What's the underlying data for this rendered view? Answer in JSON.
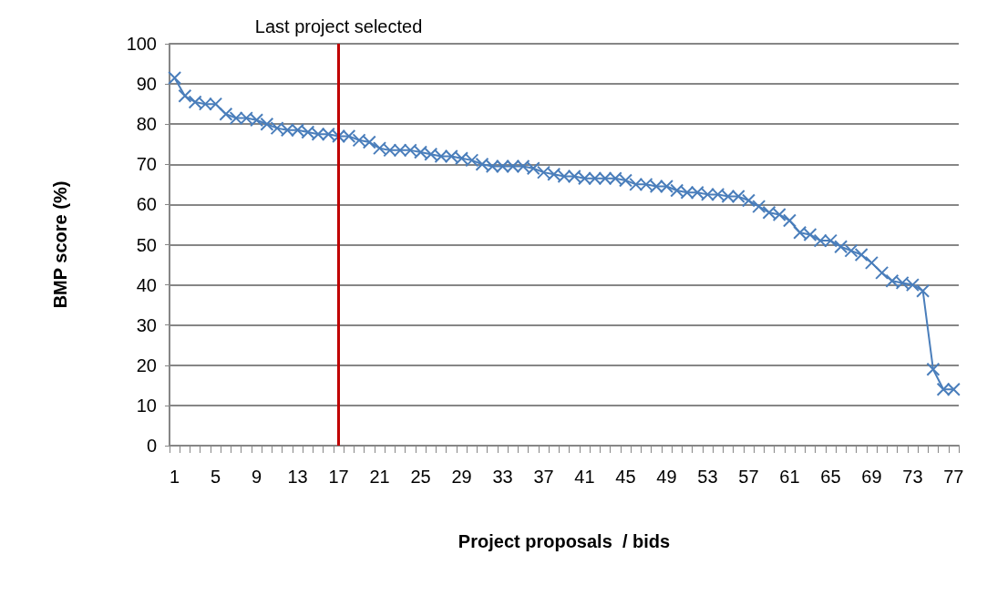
{
  "chart_data": {
    "type": "line",
    "xlabel": "Project proposals  / bids",
    "ylabel": "BMP score (%)",
    "categories": [
      "1",
      null,
      null,
      null,
      "5",
      null,
      null,
      null,
      "9",
      null,
      null,
      null,
      "13",
      null,
      null,
      null,
      "17",
      null,
      null,
      null,
      "21",
      null,
      null,
      null,
      "25",
      null,
      null,
      null,
      "29",
      null,
      null,
      null,
      "33",
      null,
      null,
      null,
      "37",
      null,
      null,
      null,
      "41",
      null,
      null,
      null,
      "45",
      null,
      null,
      null,
      "49",
      null,
      null,
      null,
      "53",
      null,
      null,
      null,
      "57",
      null,
      null,
      null,
      "61",
      null,
      null,
      null,
      "65",
      null,
      null,
      null,
      "69",
      null,
      null,
      null,
      "73",
      null,
      null,
      null,
      "77"
    ],
    "series": [
      {
        "color": "#4a7ebb",
        "values": [
          91.5,
          87,
          85.5,
          85,
          85,
          82.5,
          81.5,
          81.5,
          81,
          80,
          79,
          78.5,
          78.5,
          78,
          77.5,
          77.5,
          77,
          77,
          76,
          75.5,
          74,
          73.5,
          73.5,
          73.5,
          73,
          72.5,
          72,
          72,
          71.5,
          71,
          70,
          69.5,
          69.5,
          69.5,
          69.5,
          69,
          68,
          67.5,
          67,
          67,
          66.5,
          66.5,
          66.5,
          66.5,
          66,
          65,
          65,
          64.5,
          64.5,
          63.5,
          63,
          63,
          62.5,
          62.5,
          62,
          62,
          61,
          59.5,
          58,
          57.5,
          56,
          53,
          52.5,
          51,
          51,
          49.5,
          48.5,
          47.5,
          45.5,
          43,
          41,
          40.5,
          40,
          38.5,
          19,
          14,
          14
        ]
      }
    ],
    "ylim": [
      0,
      100
    ],
    "yticks": [
      0,
      10,
      20,
      30,
      40,
      50,
      60,
      70,
      80,
      90,
      100
    ],
    "grid": "y",
    "marker": "cross",
    "line_style": "solid",
    "ref_lines": [
      {
        "axis": "x",
        "value": "17",
        "label": "Last project selected",
        "color": "#c00000"
      }
    ]
  }
}
